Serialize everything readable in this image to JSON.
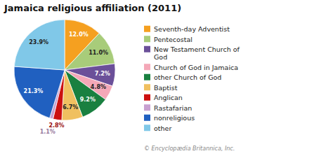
{
  "chart_data": {
    "type": "pie",
    "title": "Jamaica religious affiliation (2011)",
    "categories": [
      "Seventh-day Adventist",
      "Pentecostal",
      "New Testament Church of\nGod",
      "Church of God in Jamaica",
      "other Church of God",
      "Baptist",
      "Anglican",
      "Rastafarian",
      "nonreligious",
      "other"
    ],
    "values": [
      12.0,
      11.0,
      7.2,
      4.8,
      9.2,
      6.7,
      2.8,
      1.1,
      21.3,
      23.9
    ],
    "value_labels": [
      "12.0%",
      "11.0%",
      "7.2%",
      "4.8%",
      "9.2%",
      "6.7%",
      "2.8%",
      "1.1%",
      "21.3%",
      "23.9%"
    ],
    "colors": [
      "#F5A020",
      "#A8CC7A",
      "#6B5099",
      "#F4A8B8",
      "#1A8040",
      "#F0C060",
      "#CC1010",
      "#C8A0D0",
      "#2060C0",
      "#80C8E8"
    ],
    "data_labels": true,
    "legend": "right",
    "annotations": [
      "© Encyclopædia Britannica, Inc."
    ]
  }
}
